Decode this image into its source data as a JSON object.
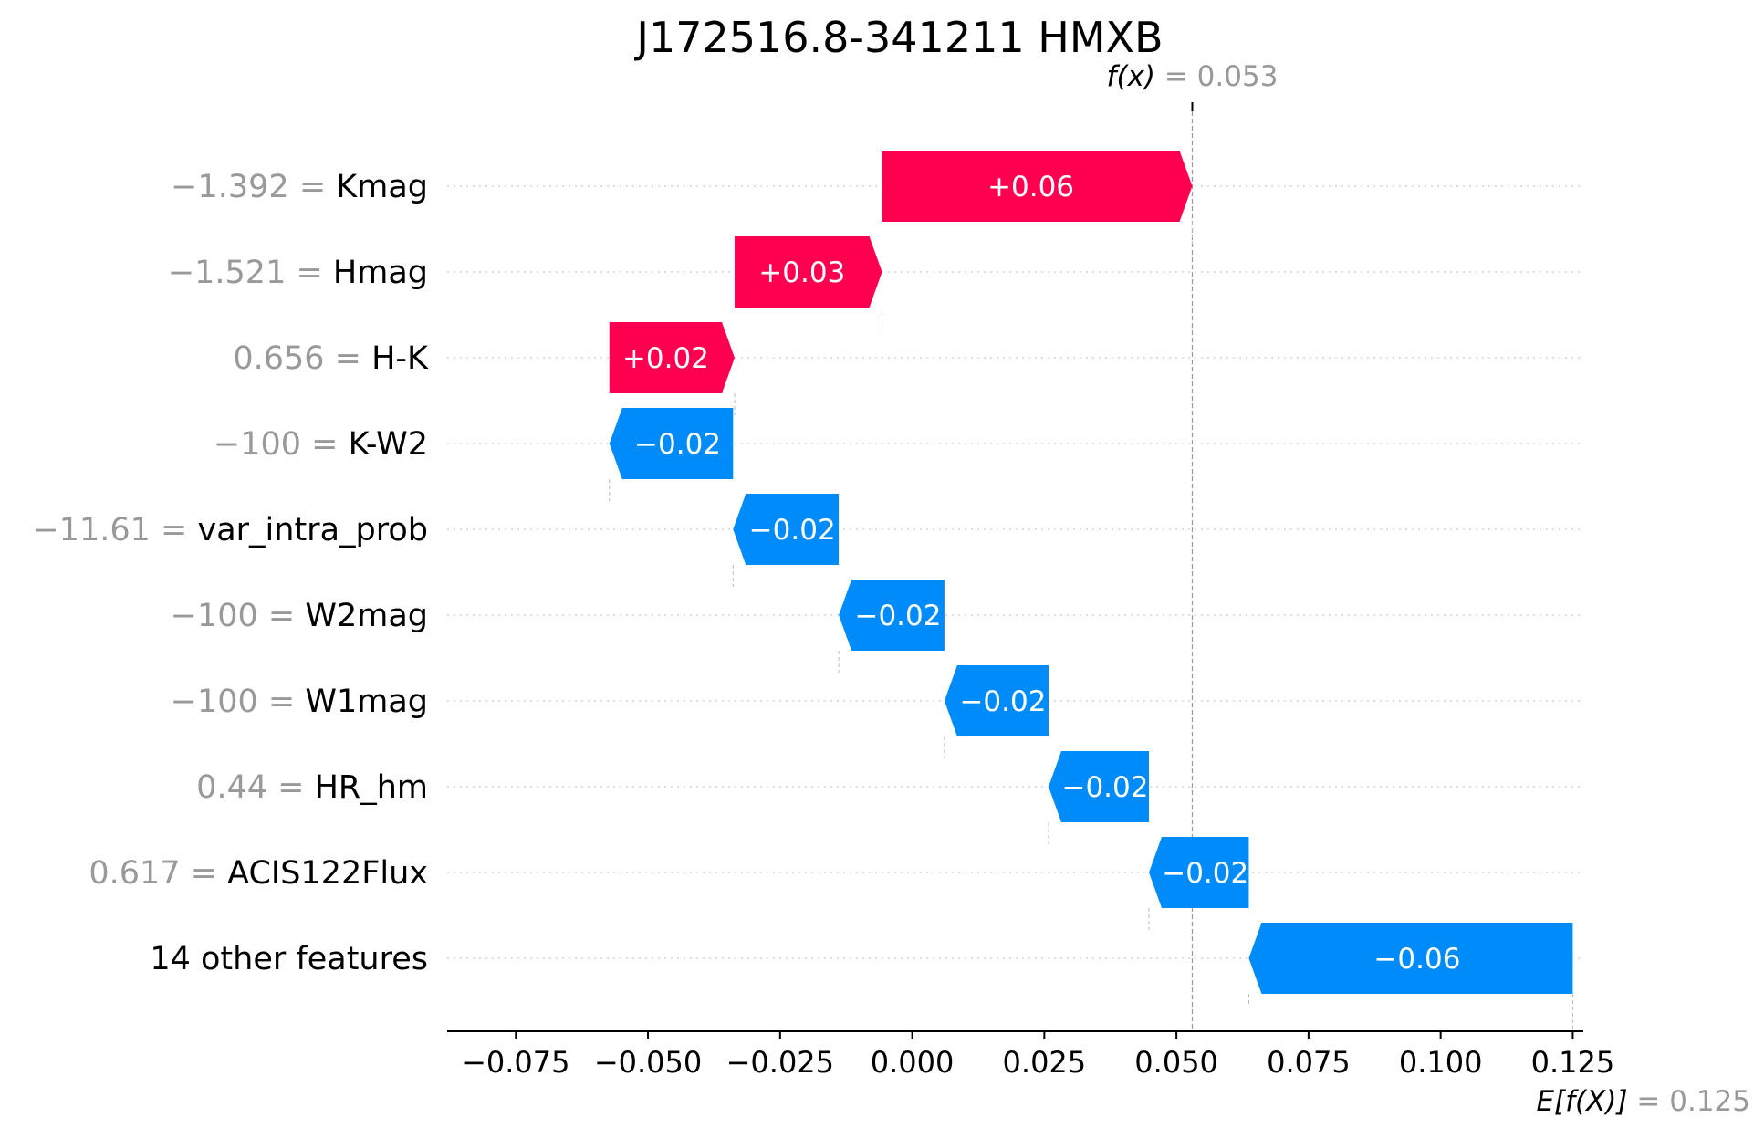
{
  "chart_data": {
    "type": "waterfall",
    "title": "J172516.8-341211 HMXB",
    "base_value": {
      "label": "E[f(X)]",
      "value": 0.125,
      "value_text": "= 0.125"
    },
    "output_value": {
      "label": "f(x)",
      "value": 0.053,
      "value_text": "= 0.053"
    },
    "xlim": [
      -0.088,
      0.127
    ],
    "x_ticks": [
      -0.075,
      -0.05,
      -0.025,
      0.0,
      0.025,
      0.05,
      0.075,
      0.1,
      0.125
    ],
    "x_tick_labels": [
      "−0.075",
      "−0.050",
      "−0.025",
      "0.000",
      "0.025",
      "0.050",
      "0.075",
      "0.100",
      "0.125"
    ],
    "features": [
      {
        "value_text": "−1.392 =",
        "name": "Kmag",
        "start": -0.0057,
        "end": 0.053,
        "label": "+0.06"
      },
      {
        "value_text": "−1.521 =",
        "name": "Hmag",
        "start": -0.0336,
        "end": -0.0057,
        "label": "+0.03"
      },
      {
        "value_text": "0.656 =",
        "name": "H-K",
        "start": -0.0573,
        "end": -0.0336,
        "label": "+0.02"
      },
      {
        "value_text": "−100 =",
        "name": "K-W2",
        "start": -0.0339,
        "end": -0.0573,
        "label": "−0.02"
      },
      {
        "value_text": "−11.61 =",
        "name": "var_intra_prob",
        "start": -0.0139,
        "end": -0.0339,
        "label": "−0.02"
      },
      {
        "value_text": "−100 =",
        "name": "W2mag",
        "start": 0.0061,
        "end": -0.0139,
        "label": "−0.02"
      },
      {
        "value_text": "−100 =",
        "name": "W1mag",
        "start": 0.0258,
        "end": 0.0061,
        "label": "−0.02"
      },
      {
        "value_text": "0.44 =",
        "name": "HR_hm",
        "start": 0.0448,
        "end": 0.0258,
        "label": "−0.02"
      },
      {
        "value_text": "0.617 =",
        "name": "ACIS122Flux",
        "start": 0.0637,
        "end": 0.0448,
        "label": "−0.02"
      },
      {
        "value_text": "",
        "name": "14 other features",
        "start": 0.125,
        "end": 0.0637,
        "label": "−0.06"
      }
    ],
    "colors": {
      "positive": "#ff0051",
      "negative": "#008bfb",
      "muted": "#999999",
      "gridline": "#cccccc"
    }
  }
}
